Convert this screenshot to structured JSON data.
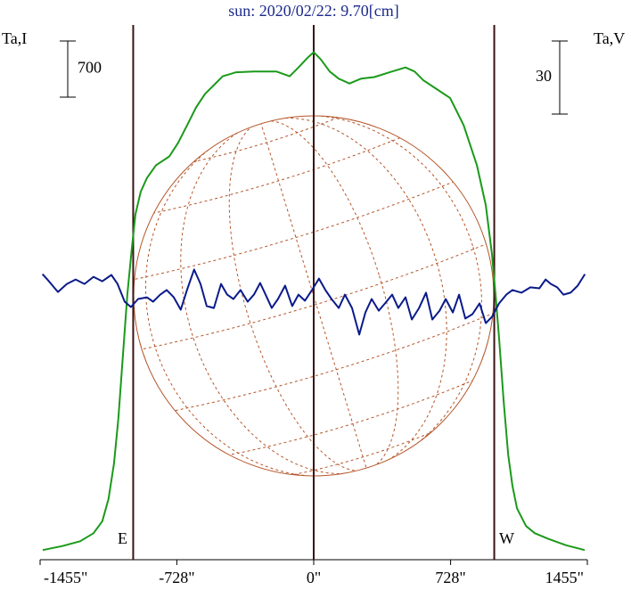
{
  "chart_data": {
    "type": "line",
    "title": "sun: 2020/02/22: 9.70[cm]",
    "ylabel": "Ta,I",
    "y2label": "Ta,V",
    "xlim": [
      -1455,
      1455
    ],
    "xticks": [
      {
        "value": -1455,
        "label": "-1455\""
      },
      {
        "value": -728,
        "label": "-728\""
      },
      {
        "value": 0,
        "label": "0\""
      },
      {
        "value": 728,
        "label": "728\""
      },
      {
        "value": 1455,
        "label": "1455\""
      }
    ],
    "ylim": [
      -120,
      6550
    ],
    "y2lim": [
      -107,
      112.5
    ],
    "scale_bars": [
      {
        "axis": "y",
        "value": 700
      },
      {
        "axis": "y2",
        "value": 30
      }
    ],
    "markers": [
      {
        "label": "E",
        "x": -960
      },
      {
        "x": 0
      },
      {
        "label": "W",
        "x": 960
      }
    ],
    "series": [
      {
        "color": "#1a9a1a",
        "axis": "y",
        "x": [
          -1441,
          -1337,
          -1242,
          -1171,
          -1124,
          -1091,
          -1062,
          -1039,
          -1015,
          -991,
          -968,
          -948,
          -920,
          -887,
          -839,
          -768,
          -721,
          -673,
          -626,
          -578,
          -531,
          -484,
          -413,
          -318,
          -199,
          -128,
          -81,
          -33,
          0,
          38,
          85,
          133,
          190,
          251,
          322,
          417,
          488,
          536,
          583,
          654,
          725,
          797,
          868,
          915,
          948,
          967,
          986,
          1010,
          1034,
          1057,
          1081,
          1129,
          1176,
          1247,
          1342,
          1441
        ],
        "values": [
          0,
          50,
          110,
          210,
          360,
          640,
          1080,
          1640,
          2410,
          3190,
          3750,
          4190,
          4470,
          4640,
          4800,
          4910,
          5080,
          5300,
          5520,
          5690,
          5800,
          5910,
          5960,
          5970,
          5970,
          5910,
          6020,
          6140,
          6210,
          6120,
          5970,
          5880,
          5820,
          5880,
          5900,
          5970,
          6020,
          5970,
          5860,
          5750,
          5640,
          5300,
          4800,
          4300,
          3690,
          3190,
          2640,
          1860,
          1190,
          800,
          520,
          300,
          210,
          140,
          60,
          0
        ]
      },
      {
        "color": "#0a1a8a",
        "axis": "y2",
        "x": [
          -1442,
          -1408,
          -1360,
          -1313,
          -1266,
          -1219,
          -1171,
          -1124,
          -1076,
          -1043,
          -1005,
          -972,
          -934,
          -887,
          -854,
          -816,
          -782,
          -744,
          -707,
          -674,
          -636,
          -602,
          -569,
          -531,
          -493,
          -460,
          -427,
          -389,
          -351,
          -318,
          -285,
          -256,
          -223,
          -190,
          -152,
          -114,
          -81,
          -47,
          -9,
          28,
          62,
          95,
          133,
          166,
          204,
          242,
          275,
          308,
          346,
          379,
          417,
          450,
          488,
          522,
          560,
          597,
          631,
          669,
          702,
          740,
          773,
          806,
          844,
          882,
          915,
          948,
          986,
          1024,
          1057,
          1105,
          1152,
          1200,
          1233,
          1261,
          1295,
          1328,
          1366,
          1404,
          1442
        ],
        "values": [
          10.2,
          7.3,
          2.9,
          6.2,
          8.0,
          6.2,
          9.1,
          7.3,
          9.9,
          6.2,
          -1.1,
          -3.3,
          0,
          0.7,
          -1.1,
          1.8,
          3.7,
          0.7,
          -4.4,
          3.7,
          12.1,
          6.2,
          -2.9,
          -3.7,
          6.2,
          1.8,
          0,
          3.7,
          -1.1,
          1.8,
          6.6,
          1.8,
          -3.7,
          0,
          5.5,
          -2.9,
          1.8,
          -0.7,
          3.7,
          8.4,
          3.7,
          0,
          -3.7,
          1.8,
          -3.7,
          -14.6,
          -5.5,
          0,
          -4.8,
          -1.8,
          1.8,
          -3.7,
          0.7,
          -8.4,
          -3.7,
          2.6,
          -8.4,
          -4.8,
          0,
          -5.5,
          1.8,
          -8.0,
          -6.2,
          -1.8,
          -9.9,
          -7.3,
          -1.8,
          1.8,
          3.7,
          2.6,
          4.8,
          4.4,
          8.0,
          6.2,
          4.8,
          1.8,
          2.6,
          5.5,
          10.2
        ]
      }
    ]
  }
}
